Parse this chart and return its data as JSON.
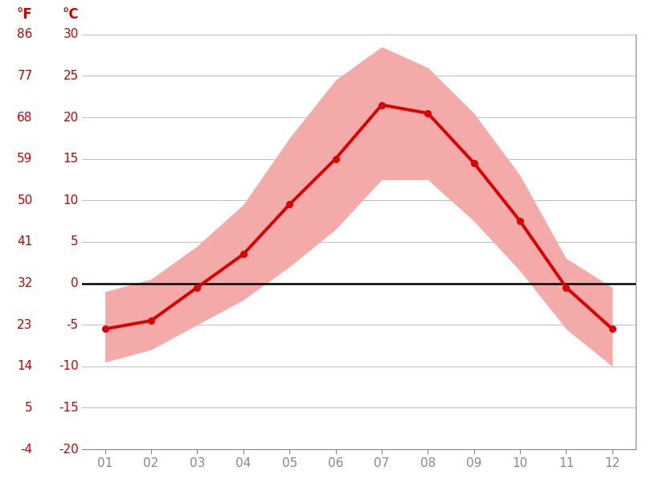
{
  "months": [
    1,
    2,
    3,
    4,
    5,
    6,
    7,
    8,
    9,
    10,
    11,
    12
  ],
  "month_labels": [
    "01",
    "02",
    "03",
    "04",
    "05",
    "06",
    "07",
    "08",
    "09",
    "10",
    "11",
    "12"
  ],
  "mean_temp_c": [
    -5.5,
    -4.5,
    -0.5,
    3.5,
    9.5,
    15.0,
    21.5,
    20.5,
    14.5,
    7.5,
    -0.5,
    -5.5
  ],
  "max_temp_c": [
    -1.0,
    0.5,
    4.5,
    9.5,
    17.5,
    24.5,
    28.5,
    26.0,
    20.5,
    13.0,
    3.0,
    -0.5
  ],
  "min_temp_c": [
    -9.5,
    -8.0,
    -5.0,
    -2.0,
    2.0,
    6.5,
    12.5,
    12.5,
    7.5,
    1.5,
    -5.5,
    -10.0
  ],
  "line_color": "#dd0000",
  "band_color": "#f5aaaa",
  "zero_line_color": "#000000",
  "grid_color": "#c0c0c0",
  "text_color": "#cc0000",
  "tick_color": "#888888",
  "bg_color": "#ffffff",
  "ylim_min": -20,
  "ylim_max": 30,
  "yticks_c": [
    -20,
    -15,
    -10,
    -5,
    0,
    5,
    10,
    15,
    20,
    25,
    30
  ],
  "yticks_f": [
    -4,
    5,
    14,
    23,
    32,
    41,
    50,
    59,
    68,
    77,
    86
  ],
  "label_fontsize": 11,
  "unit_fontsize": 12
}
